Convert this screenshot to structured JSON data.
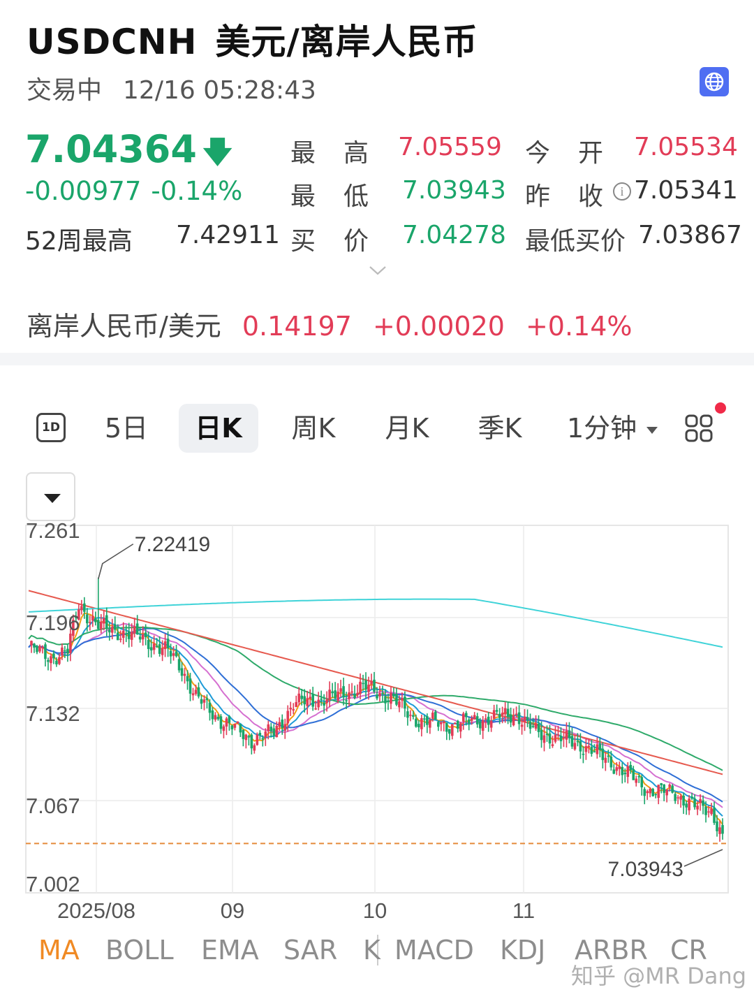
{
  "header": {
    "symbol": "USDCNH",
    "name": "美元/离岸人民币",
    "status": "交易中",
    "datetime": "12/16 05:28:43"
  },
  "quote": {
    "last": "7.04364",
    "change": "-0.00977",
    "change_pct": "-0.14%",
    "w52_high_label": "52周最高",
    "w52_high": "7.42911",
    "high_label": [
      "最",
      "高"
    ],
    "high": "7.05559",
    "open_label": [
      "今",
      "开"
    ],
    "open": "7.05534",
    "low_label": [
      "最",
      "低"
    ],
    "low": "7.03943",
    "prev_close_label": [
      "昨",
      "收"
    ],
    "prev_close": "7.05341",
    "bid_label": [
      "买",
      "价"
    ],
    "bid": "7.04278",
    "lowest_bid_label": "最低买价",
    "lowest_bid": "7.03867"
  },
  "reverse": {
    "label": "离岸人民币/美元",
    "value": "0.14197",
    "change": "+0.00020",
    "change_pct": "+0.14%"
  },
  "tabs": {
    "t1d": "1D",
    "t5d": "5日",
    "day_k": "日K",
    "week_k": "周K",
    "month_k": "月K",
    "quarter_k": "季K",
    "minute": "1分钟",
    "active": "日K"
  },
  "colors": {
    "up": "#e23c57",
    "down": "#1aa56a",
    "accent_tab": "#f08a24",
    "ma5": "#f39c12",
    "ma10": "#1e9bd7",
    "ma20": "#d56fd0",
    "ma30": "#2f6fd6",
    "ma60": "#2eaa6a",
    "ma120": "#e6594e",
    "ma250": "#3fd3d8"
  },
  "chart_data": {
    "type": "candlestick",
    "ylim": [
      7.002,
      7.261
    ],
    "y_ticks": [
      "7.261",
      "7.196",
      "7.132",
      "7.067",
      "7.002"
    ],
    "x_ticks": [
      "2025/08",
      "09",
      "10",
      "11"
    ],
    "high_marker": "7.22419",
    "low_marker": "7.03943",
    "current_price": 7.04364
  },
  "indicators": [
    "MA",
    "BOLL",
    "EMA",
    "SAR",
    "K",
    "MACD",
    "KDJ",
    "ARBR",
    "CR"
  ],
  "active_indicator": "MA",
  "watermark": "知乎 @MR Dang"
}
